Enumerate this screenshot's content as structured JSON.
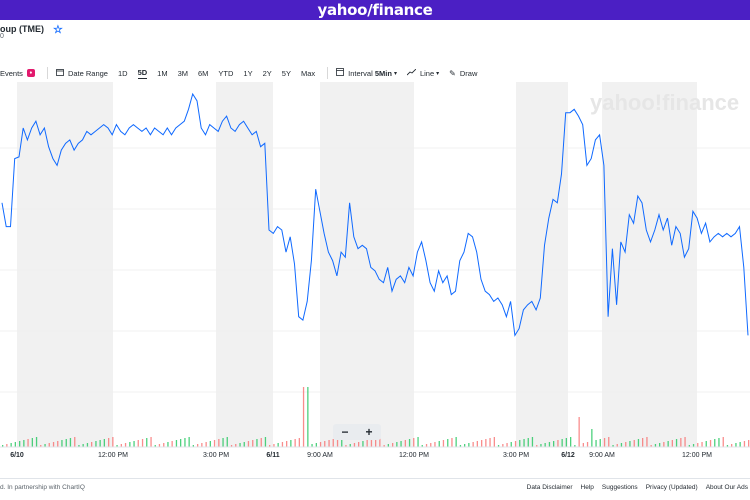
{
  "header": {
    "brand_left": "yahoo",
    "brand_slash": "/",
    "brand_right": "finance"
  },
  "ticker": {
    "name": "oup (TME)",
    "sub": "0"
  },
  "toolbar": {
    "events_label": "Events",
    "date_range_label": "Date Range",
    "ranges": [
      "1D",
      "5D",
      "1M",
      "3M",
      "6M",
      "YTD",
      "1Y",
      "2Y",
      "5Y",
      "Max"
    ],
    "active_range": "5D",
    "interval_label": "Interval",
    "interval_value": "5Min",
    "line_label": "Line",
    "draw_label": "Draw"
  },
  "zoom": {
    "minus": "−",
    "plus": "+"
  },
  "watermark": "yahoo!finance",
  "x_axis_labels": [
    {
      "text": "6/10",
      "bold": true
    },
    {
      "text": "12:00 PM",
      "bold": false
    },
    {
      "text": "3:00 PM",
      "bold": false
    },
    {
      "text": "6/11",
      "bold": true
    },
    {
      "text": "9:00 AM",
      "bold": false
    },
    {
      "text": "12:00 PM",
      "bold": false
    },
    {
      "text": "3:00 PM",
      "bold": false
    },
    {
      "text": "6/12",
      "bold": true
    },
    {
      "text": "9:00 AM",
      "bold": false
    },
    {
      "text": "12:00 PM",
      "bold": false
    }
  ],
  "footer": {
    "left": "d. In partnership with ChartIQ",
    "links": [
      "Data Disclaimer",
      "Help",
      "Suggestions",
      "Privacy (Updated)",
      "About Our Ads"
    ]
  },
  "colors": {
    "line": "#0f69ff",
    "volume_up": "#22c55e",
    "volume_down": "#f87171",
    "shade": "#f1f1f1",
    "brand": "#4b1fc4"
  },
  "chart_data": {
    "type": "line",
    "title": "",
    "xlabel": "",
    "ylabel": "",
    "x_labels": [
      "6/10",
      "12:00 PM",
      "3:00 PM",
      "6/11",
      "9:00 AM",
      "12:00 PM",
      "3:00 PM",
      "6/12",
      "9:00 AM",
      "12:00 PM"
    ],
    "grid": true,
    "series": [
      {
        "values": [
          0.36,
          0.22,
          0.22,
          0.62,
          0.63,
          0.8,
          0.73,
          0.8,
          0.84,
          0.76,
          0.8,
          0.69,
          0.62,
          0.58,
          0.67,
          0.71,
          0.73,
          0.67,
          0.71,
          0.73,
          0.78,
          0.76,
          0.78,
          0.8,
          0.82,
          0.8,
          0.76,
          0.82,
          0.78,
          0.76,
          0.8,
          0.82,
          0.8,
          0.78,
          0.8,
          0.76,
          0.8,
          0.78,
          0.76,
          0.8,
          0.76,
          0.8,
          0.82,
          0.84,
          0.91,
          1.0,
          0.96,
          0.8,
          0.76,
          0.82,
          0.8,
          0.78,
          0.84,
          0.87,
          0.8,
          0.78,
          0.82,
          0.84,
          0.8,
          0.76,
          0.78,
          0.69,
          0.71,
          0.2,
          0.18,
          0.22,
          0.2,
          0.07,
          0.16,
          0.0,
          -0.31,
          -0.33,
          -0.22,
          0.02,
          0.44,
          0.31,
          0.18,
          0.07,
          0.02,
          -0.07,
          0.07,
          0.04,
          0.36,
          0.16,
          0.09,
          0.11,
          0.09,
          -0.02,
          -0.04,
          -0.09,
          -0.11,
          -0.02,
          -0.16,
          -0.09,
          -0.07,
          -0.11,
          -0.02,
          -0.07,
          0.07,
          0.13,
          0.02,
          -0.11,
          -0.16,
          -0.04,
          -0.11,
          -0.07,
          -0.18,
          -0.16,
          0.02,
          0.07,
          0.18,
          0.16,
          0.07,
          -0.09,
          -0.16,
          -0.18,
          -0.22,
          -0.2,
          -0.24,
          -0.31,
          -0.22,
          -0.42,
          -0.38,
          -0.27,
          -0.24,
          -0.22,
          -0.27,
          -0.2,
          0.11,
          0.27,
          0.38,
          0.36,
          0.53,
          0.89,
          0.89,
          0.91,
          0.87,
          0.82,
          0.58,
          0.62,
          0.73,
          0.76,
          0.58,
          -0.31,
          0.09,
          -0.24,
          0.13,
          0.07,
          0.29,
          0.24,
          0.4,
          0.36,
          0.2,
          0.13,
          0.2,
          0.29,
          0.2,
          0.27,
          0.11,
          0.22,
          0.18,
          0.04,
          0.09,
          0.31,
          0.27,
          0.18,
          0.24,
          0.13,
          0.16,
          0.18,
          0.16,
          0.18,
          0.16,
          0.18,
          0.22,
          -0.02,
          -0.42
        ]
      }
    ]
  }
}
